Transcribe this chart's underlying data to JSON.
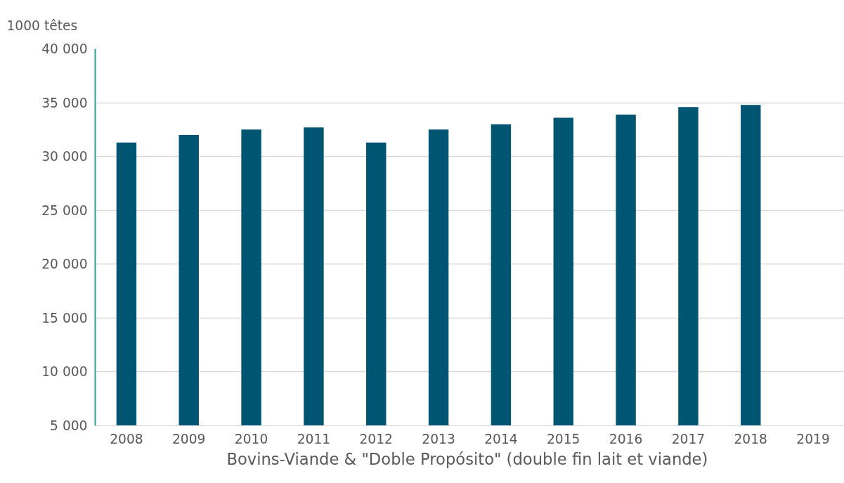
{
  "chart_data": {
    "type": "bar",
    "ylabel": "1000 têtes",
    "xlabel": "Bovins-Viande & \"Doble Propósito\"  (double fin lait et viande)",
    "categories": [
      "2008",
      "2009",
      "2010",
      "2011",
      "2012",
      "2013",
      "2014",
      "2015",
      "2016",
      "2017",
      "2018",
      "2019"
    ],
    "values": [
      31300,
      32000,
      32500,
      32700,
      31300,
      32500,
      33000,
      33600,
      33900,
      34600,
      34800,
      null
    ],
    "color": "#005573",
    "ylim": [
      5000,
      40000
    ],
    "yticks": [
      {
        "value": 5000,
        "label": "5 000"
      },
      {
        "value": 10000,
        "label": "10 000"
      },
      {
        "value": 15000,
        "label": "15 000"
      },
      {
        "value": 20000,
        "label": "20 000"
      },
      {
        "value": 25000,
        "label": "25 000"
      },
      {
        "value": 30000,
        "label": "30 000"
      },
      {
        "value": 35000,
        "label": "35 000"
      },
      {
        "value": 40000,
        "label": "40 000"
      }
    ],
    "grid": "y"
  }
}
